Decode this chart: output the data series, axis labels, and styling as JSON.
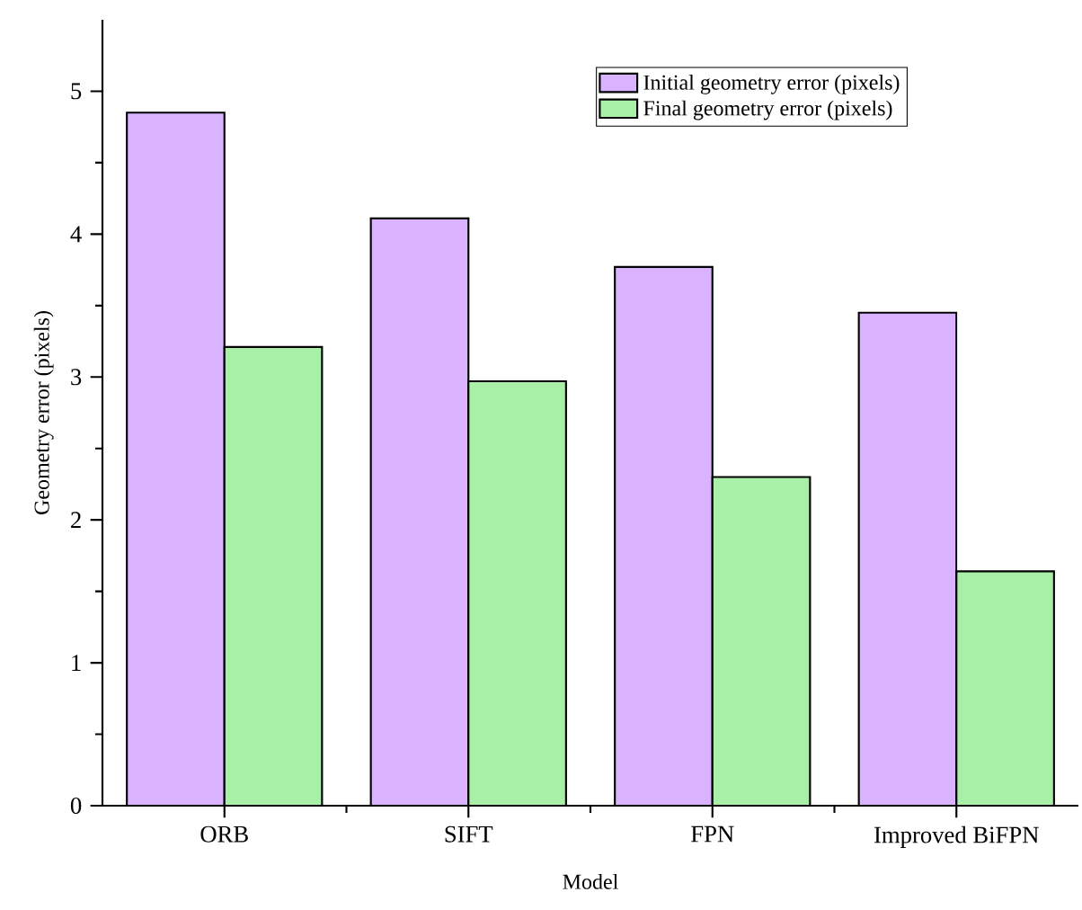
{
  "chart_data": {
    "type": "bar",
    "xlabel": "Model",
    "ylabel": "Geometry error (pixels)",
    "categories": [
      "ORB",
      "SIFT",
      "FPN",
      "Improved BiFPN"
    ],
    "series": [
      {
        "name": "Initial geometry error (pixels)",
        "color": "#d9b3ff",
        "values": [
          4.85,
          4.11,
          3.77,
          3.45
        ]
      },
      {
        "name": "Final geometry error (pixels)",
        "color": "#a8f0a8",
        "values": [
          3.21,
          2.97,
          2.3,
          1.64
        ]
      }
    ],
    "ylim": [
      0,
      5.5
    ],
    "yticks": [
      0,
      1,
      2,
      3,
      4,
      5
    ],
    "grid": false,
    "legend": "top right"
  }
}
